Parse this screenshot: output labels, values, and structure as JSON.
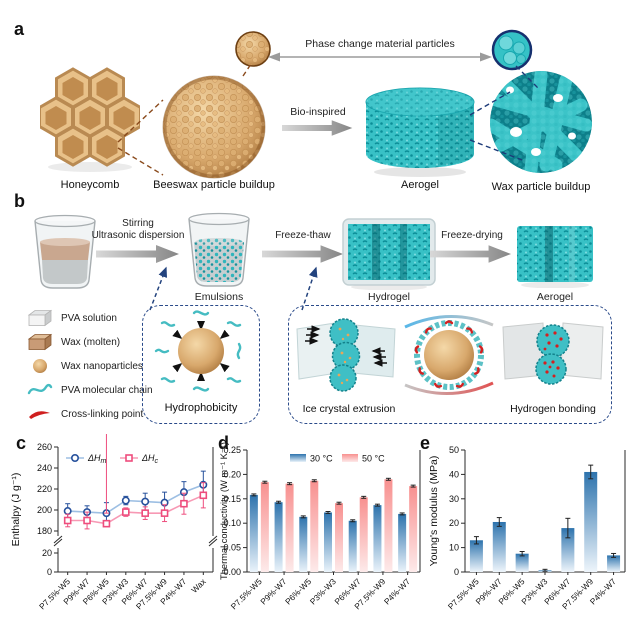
{
  "panels": {
    "a": {
      "label": "a",
      "honeycomb_label": "Honeycomb",
      "beeswax_label": "Beeswax particle buildup",
      "aerogel_label": "Aerogel",
      "wax_buildup_label": "Wax particle buildup",
      "phase_particles_label": "Phase change material particles",
      "bio_inspired_label": "Bio-inspired"
    },
    "b": {
      "label": "b",
      "stirring_line1": "Stirring",
      "stirring_line2": "Ultrasonic dispersion",
      "emulsions_label": "Emulsions",
      "freeze_thaw_label": "Freeze-thaw",
      "hydrogel_label": "Hydrogel",
      "freeze_drying_label": "Freeze-drying",
      "aerogel_label": "Aerogel",
      "legend": [
        {
          "icon": "pva-solution-cube-icon",
          "label": "PVA solution"
        },
        {
          "icon": "wax-molten-cube-icon",
          "label": "Wax (molten)"
        },
        {
          "icon": "wax-nanoparticle-icon",
          "label": "Wax nanoparticles"
        },
        {
          "icon": "pva-chain-icon",
          "label": "PVA molecular chain"
        },
        {
          "icon": "cross-link-icon",
          "label": "Cross-linking point"
        }
      ],
      "hydrophobicity_label": "Hydrophobicity",
      "ice_crystal_label": "Ice crystal extrusion",
      "hydrogen_bonding_label": "Hydrogen bonding"
    },
    "c": {
      "label": "c"
    },
    "d": {
      "label": "d"
    },
    "e": {
      "label": "e"
    }
  },
  "accent_colors": {
    "cyan": "#3cc3c8",
    "dark_cyan": "#0f98a2",
    "tan": "#e2b57e",
    "dark_tan": "#b9854a",
    "navy": "#23437e",
    "brown": "#8a4a1c",
    "red": "#d42020",
    "bar_blue_top": "#2d73ad",
    "bar_pink_top": "#f8908f"
  },
  "chart_data": [
    {
      "id": "c",
      "type": "line",
      "panel_label": "c",
      "ylabel": "Enthalpy (J g⁻¹)",
      "categories": [
        "P7.5%-W5",
        "P9%-W7",
        "P6%-W5",
        "P3%-W3",
        "P6%-W7",
        "P7.5%-W9",
        "P4%-W7",
        "Wax"
      ],
      "axis_break": true,
      "ylim_upper": [
        180,
        260
      ],
      "ylim_lower": [
        0,
        20
      ],
      "yticks_upper": [
        260,
        240,
        220,
        200,
        180
      ],
      "yticks_lower": [
        20,
        0
      ],
      "ytick_decimals": 0,
      "legend_position": "top",
      "series": [
        {
          "name": "ΔH_m",
          "marker": "circle",
          "color": "#27519c",
          "line_color": "#9dbfe3",
          "values": [
            199,
            198,
            197,
            209,
            208,
            207,
            217,
            224
          ],
          "errors": [
            7,
            6,
            10,
            4,
            8,
            10,
            10,
            13
          ]
        },
        {
          "name": "ΔH_c",
          "marker": "square",
          "color": "#ee4d7d",
          "line_color": "#f799b4",
          "values": [
            190,
            190,
            187,
            198,
            197,
            197,
            206,
            214
          ],
          "errors": [
            6,
            8,
            10,
            4,
            6,
            8,
            10,
            12
          ]
        }
      ]
    },
    {
      "id": "d",
      "type": "bar",
      "panel_label": "d",
      "ylabel": "Thermal conductivity (W m⁻¹ K⁻¹)",
      "categories": [
        "P7.5%-W5",
        "P9%-W7",
        "P6%-W5",
        "P3%-W3",
        "P6%-W7",
        "P7.5%-W9",
        "P4%-W7"
      ],
      "ylim": [
        0,
        0.25
      ],
      "yticks": [
        0,
        0.05,
        0.1,
        0.15,
        0.2,
        0.25
      ],
      "ytick_decimals": 2,
      "legend_position": "top",
      "series": [
        {
          "name": "30 °C",
          "color_top": "#2d73ad",
          "color_bottom": "#eaf3fa",
          "values": [
            0.158,
            0.143,
            0.113,
            0.122,
            0.105,
            0.137,
            0.119
          ],
          "errors": [
            0.002,
            0.002,
            0.002,
            0.002,
            0.002,
            0.002,
            0.002
          ]
        },
        {
          "name": "50 °C",
          "color_top": "#f8908f",
          "color_bottom": "#fdeaea",
          "values": [
            0.184,
            0.181,
            0.187,
            0.141,
            0.153,
            0.19,
            0.176
          ],
          "errors": [
            0.002,
            0.002,
            0.002,
            0.002,
            0.002,
            0.002,
            0.002
          ]
        }
      ]
    },
    {
      "id": "e",
      "type": "bar",
      "panel_label": "e",
      "ylabel": "Young's modulus (MPa)",
      "categories": [
        "P7.5%-W5",
        "P9%-W7",
        "P6%-W5",
        "P3%-W3",
        "P6%-W7",
        "P7.5%-W9",
        "P4%-W7"
      ],
      "ylim": [
        0,
        50
      ],
      "yticks": [
        0,
        10,
        20,
        30,
        40,
        50
      ],
      "ytick_decimals": 0,
      "series": [
        {
          "name": "",
          "color_top": "#2d73ad",
          "color_bottom": "#eef5fb",
          "values": [
            13,
            20.5,
            7.5,
            0.7,
            18,
            41,
            6.8
          ],
          "errors": [
            1.5,
            1.8,
            0.9,
            0.4,
            4,
            2.8,
            0.8
          ]
        }
      ]
    }
  ]
}
